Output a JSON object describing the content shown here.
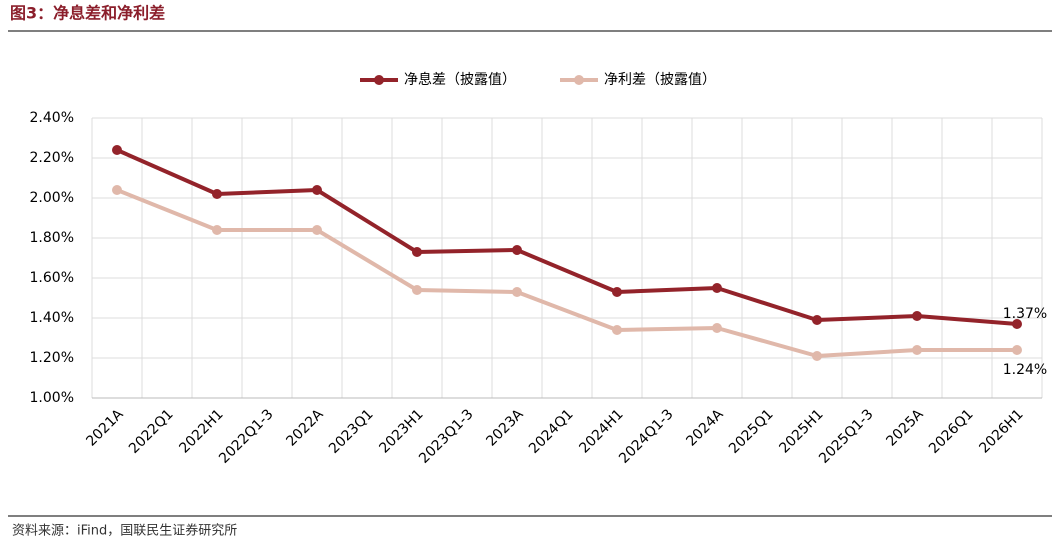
{
  "header": {
    "title": "图3：净息差和净利差"
  },
  "chart_data": {
    "type": "line",
    "categories": [
      "2021A",
      "2022Q1",
      "2022H1",
      "2022Q1-3",
      "2022A",
      "2023Q1",
      "2023H1",
      "2023Q1-3",
      "2023A",
      "2024Q1",
      "2024H1",
      "2024Q1-3",
      "2024A",
      "2025Q1",
      "2025H1",
      "2025Q1-3",
      "2025A",
      "2026Q1",
      "2026H1"
    ],
    "series": [
      {
        "name": "净息差（披露值）",
        "color": "#93232a",
        "values": [
          2.24,
          null,
          2.02,
          null,
          2.04,
          null,
          1.73,
          null,
          1.74,
          null,
          1.53,
          null,
          1.55,
          null,
          1.39,
          null,
          1.41,
          null,
          1.37
        ],
        "value_labels": [
          null,
          null,
          null,
          null,
          null,
          null,
          null,
          null,
          null,
          null,
          null,
          null,
          null,
          null,
          null,
          null,
          null,
          null,
          "1.37%"
        ]
      },
      {
        "name": "净利差（披露值）",
        "color": "#e0b8aa",
        "values": [
          2.04,
          null,
          1.84,
          null,
          1.84,
          null,
          1.54,
          null,
          1.53,
          null,
          1.34,
          null,
          1.35,
          null,
          1.21,
          null,
          1.24,
          null,
          1.24
        ],
        "value_labels": [
          null,
          null,
          null,
          null,
          null,
          null,
          null,
          null,
          null,
          null,
          null,
          null,
          null,
          null,
          null,
          null,
          null,
          null,
          "1.24%"
        ]
      }
    ],
    "ylim": [
      1.0,
      2.4
    ],
    "yticks": [
      {
        "value": 1.0,
        "label": "1.00%"
      },
      {
        "value": 1.2,
        "label": "1.20%"
      },
      {
        "value": 1.4,
        "label": "1.40%"
      },
      {
        "value": 1.6,
        "label": "1.60%"
      },
      {
        "value": 1.8,
        "label": "1.80%"
      },
      {
        "value": 2.0,
        "label": "2.00%"
      },
      {
        "value": 2.2,
        "label": "2.20%"
      },
      {
        "value": 2.4,
        "label": "2.40%"
      }
    ],
    "grid": true
  },
  "footer": {
    "source": "资料来源：iFind，国联民生证券研究所"
  }
}
